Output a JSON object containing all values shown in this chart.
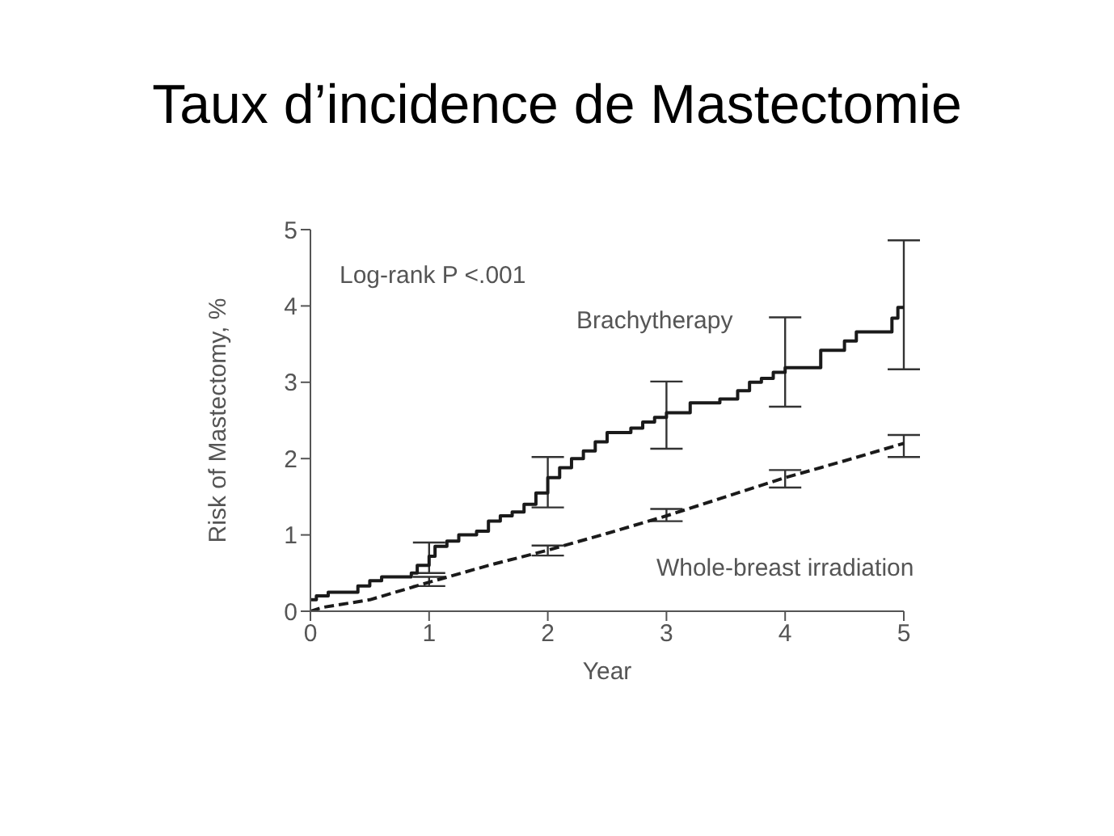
{
  "chart_data": {
    "type": "line",
    "title": "Taux d’incidence de Mastectomie",
    "xlabel": "Year",
    "ylabel": "Risk of Mastectomy, %",
    "annotations": [
      "Log-rank P <.001"
    ],
    "xlim": [
      0,
      5
    ],
    "xticks": [
      0,
      1,
      2,
      3,
      4,
      5
    ],
    "ylim": [
      0,
      5
    ],
    "yticks": [
      0,
      1,
      2,
      3,
      4,
      5
    ],
    "grid": false,
    "legend": false,
    "marker": "none",
    "series": [
      {
        "name": "Brachytherapy",
        "type": "step",
        "color": "#1a1a1a",
        "line_style": "solid",
        "x": [
          0,
          0.05,
          0.15,
          0.4,
          0.5,
          0.6,
          0.85,
          0.9,
          1,
          1.05,
          1.15,
          1.25,
          1.4,
          1.5,
          1.6,
          1.7,
          1.8,
          1.9,
          2,
          2.1,
          2.2,
          2.3,
          2.4,
          2.5,
          2.7,
          2.8,
          2.9,
          3,
          3.2,
          3.45,
          3.6,
          3.7,
          3.8,
          3.9,
          4,
          4.3,
          4.5,
          4.6,
          4.9,
          4.95,
          5
        ],
        "values": [
          0.15,
          0.2,
          0.25,
          0.33,
          0.4,
          0.45,
          0.5,
          0.6,
          0.72,
          0.85,
          0.92,
          1,
          1.05,
          1.18,
          1.25,
          1.3,
          1.4,
          1.55,
          1.75,
          1.88,
          2,
          2.1,
          2.22,
          2.34,
          2.4,
          2.48,
          2.54,
          2.6,
          2.73,
          2.78,
          2.89,
          3,
          3.05,
          3.13,
          3.19,
          3.42,
          3.54,
          3.66,
          3.84,
          3.98,
          4
        ],
        "errors": [
          null,
          null,
          null,
          null,
          null,
          null,
          null,
          null,
          [
            0.5,
            0.9
          ],
          null,
          null,
          null,
          null,
          null,
          null,
          null,
          null,
          null,
          [
            1.36,
            2.02
          ],
          null,
          null,
          null,
          null,
          null,
          null,
          null,
          null,
          [
            2.13,
            3.01
          ],
          null,
          null,
          null,
          null,
          null,
          null,
          [
            2.68,
            3.85
          ],
          null,
          null,
          null,
          null,
          null,
          [
            3.17,
            4.86
          ]
        ]
      },
      {
        "name": "Whole-breast irradiation",
        "type": "line",
        "color": "#1a1a1a",
        "line_style": "dashed",
        "x": [
          0,
          0.1,
          0.5,
          1,
          1.5,
          2,
          2.5,
          3,
          3.5,
          4,
          4.5,
          5
        ],
        "values": [
          0,
          0.05,
          0.15,
          0.38,
          0.6,
          0.8,
          1.02,
          1.25,
          1.5,
          1.75,
          1.97,
          2.2
        ],
        "errors": [
          null,
          null,
          null,
          [
            0.33,
            0.45
          ],
          null,
          [
            0.73,
            0.86
          ],
          null,
          [
            1.18,
            1.34
          ],
          null,
          [
            1.62,
            1.85
          ],
          null,
          [
            2.02,
            2.31
          ]
        ]
      }
    ]
  }
}
